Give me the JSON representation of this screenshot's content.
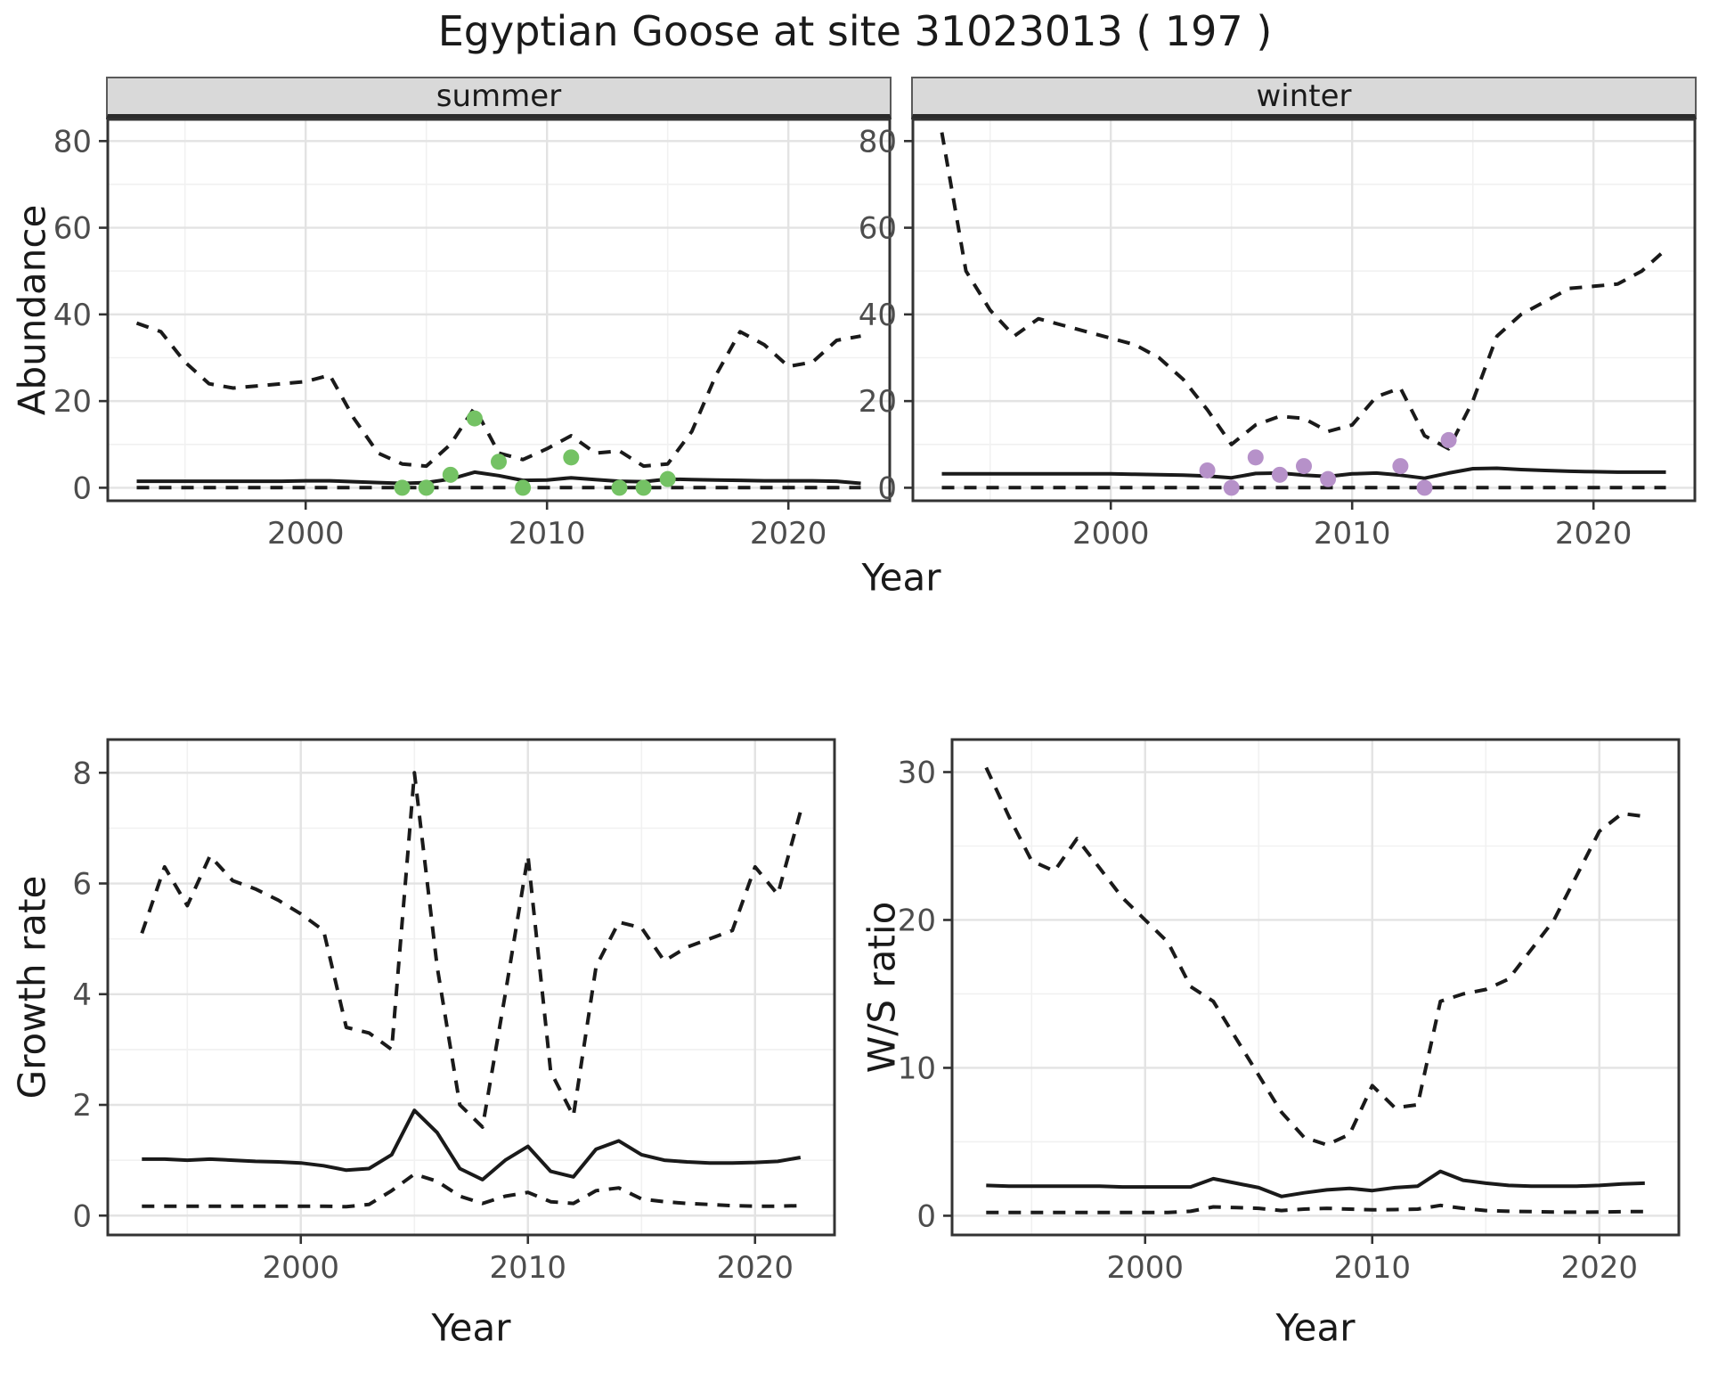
{
  "title": "Egyptian Goose at site 31023013 ( 197 )",
  "colors": {
    "series_line": "#1a1a1a",
    "summer_point": "#74c264",
    "winter_point": "#b691c9",
    "strip_bg": "#d9d9d9",
    "grid_major": "#e3e3e3",
    "grid_minor": "#f1f1f1",
    "panel_border": "#333333",
    "tick_label": "#4d4d4d",
    "title_text": "#1a1a1a"
  },
  "chart_data": [
    {
      "type": "line",
      "facet": "summer",
      "xlabel": "Year",
      "ylabel": "Abundance",
      "xlim": [
        1991.8,
        2024.2
      ],
      "ylim": [
        -3,
        85
      ],
      "x_ticks": [
        2000,
        2010,
        2020
      ],
      "x_minor": [
        1995,
        2005,
        2015
      ],
      "y_ticks": [
        0,
        20,
        40,
        60,
        80
      ],
      "y_minor": [
        10,
        30,
        50,
        70
      ],
      "x": [
        1993,
        1994,
        1995,
        1996,
        1997,
        1998,
        1999,
        2000,
        2001,
        2002,
        2003,
        2004,
        2005,
        2006,
        2007,
        2008,
        2009,
        2010,
        2011,
        2012,
        2013,
        2014,
        2015,
        2016,
        2017,
        2018,
        2019,
        2020,
        2021,
        2022,
        2023
      ],
      "series": [
        {
          "name": "upper_ci",
          "style": "dashed",
          "values": [
            38,
            36,
            29,
            24,
            23,
            23.5,
            24,
            24.5,
            26,
            16,
            8,
            5.5,
            5,
            10,
            18.5,
            8,
            6.5,
            9,
            12,
            8,
            8.5,
            5,
            5.5,
            13,
            26,
            36,
            33,
            28,
            29,
            34,
            35
          ]
        },
        {
          "name": "mean",
          "style": "solid",
          "values": [
            1.5,
            1.5,
            1.5,
            1.5,
            1.5,
            1.5,
            1.5,
            1.6,
            1.6,
            1.4,
            1.2,
            1.0,
            1.2,
            2.0,
            3.6,
            2.8,
            1.7,
            1.8,
            2.3,
            1.9,
            1.5,
            1.4,
            2.0,
            1.9,
            1.8,
            1.7,
            1.6,
            1.6,
            1.6,
            1.5,
            1.0
          ]
        },
        {
          "name": "lower_ci",
          "style": "dashed",
          "values": [
            0.05,
            0.05,
            0.05,
            0.05,
            0.05,
            0.05,
            0.05,
            0.05,
            0.05,
            0.05,
            0.05,
            0.05,
            0.05,
            0.05,
            0.05,
            0.05,
            0.05,
            0.05,
            0.05,
            0.05,
            0.05,
            0.05,
            0.05,
            0.05,
            0.05,
            0.05,
            0.05,
            0.05,
            0.05,
            0.05,
            0.05
          ]
        }
      ],
      "points": {
        "name": "observed-counts",
        "color_key": "summer_point",
        "x": [
          2004,
          2005,
          2006,
          2007,
          2008,
          2009,
          2011,
          2013,
          2014,
          2015
        ],
        "y": [
          0,
          0,
          3,
          16,
          6,
          0,
          7,
          0,
          0,
          2
        ]
      }
    },
    {
      "type": "line",
      "facet": "winter",
      "xlabel": "Year",
      "ylabel": "Abundance",
      "xlim": [
        1991.8,
        2024.2
      ],
      "ylim": [
        -3,
        85
      ],
      "x_ticks": [
        2000,
        2010,
        2020
      ],
      "x_minor": [
        1995,
        2005,
        2015
      ],
      "y_ticks": [
        0,
        20,
        40,
        60,
        80
      ],
      "y_minor": [
        10,
        30,
        50,
        70
      ],
      "x": [
        1993,
        1994,
        1995,
        1996,
        1997,
        1998,
        1999,
        2000,
        2001,
        2002,
        2003,
        2004,
        2005,
        2006,
        2007,
        2008,
        2009,
        2010,
        2011,
        2012,
        2013,
        2014,
        2015,
        2016,
        2017,
        2018,
        2019,
        2020,
        2021,
        2022,
        2023
      ],
      "series": [
        {
          "name": "upper_ci",
          "style": "dashed",
          "values": [
            82,
            50,
            41,
            35,
            39,
            37.5,
            36,
            34.5,
            33,
            30,
            25,
            18,
            10,
            14.5,
            16.5,
            16,
            13,
            14.5,
            21,
            23,
            12,
            9,
            20,
            35,
            40,
            43,
            46,
            46.5,
            47,
            50,
            55
          ]
        },
        {
          "name": "mean",
          "style": "solid",
          "values": [
            3.2,
            3.2,
            3.2,
            3.2,
            3.2,
            3.2,
            3.2,
            3.2,
            3.1,
            3.0,
            2.9,
            2.7,
            2.3,
            3.3,
            3.4,
            2.9,
            2.6,
            3.2,
            3.4,
            2.9,
            2.2,
            3.4,
            4.4,
            4.5,
            4.2,
            4.0,
            3.8,
            3.7,
            3.6,
            3.6,
            3.6
          ]
        },
        {
          "name": "lower_ci",
          "style": "dashed",
          "values": [
            0.05,
            0.05,
            0.05,
            0.05,
            0.05,
            0.05,
            0.05,
            0.05,
            0.05,
            0.05,
            0.05,
            0.05,
            0.05,
            0.05,
            0.05,
            0.05,
            0.05,
            0.05,
            0.05,
            0.05,
            0.05,
            0.05,
            0.05,
            0.05,
            0.05,
            0.05,
            0.05,
            0.05,
            0.05,
            0.05,
            0.05
          ]
        }
      ],
      "points": {
        "name": "observed-counts",
        "color_key": "winter_point",
        "x": [
          2004,
          2005,
          2006,
          2007,
          2008,
          2009,
          2012,
          2013,
          2014
        ],
        "y": [
          4,
          0,
          7,
          3,
          5,
          2,
          5,
          0,
          11
        ]
      }
    },
    {
      "type": "line",
      "facet": null,
      "xlabel": "Year",
      "ylabel": "Growth rate",
      "xlim": [
        1991.5,
        2023.5
      ],
      "ylim": [
        -0.35,
        8.6
      ],
      "x_ticks": [
        2000,
        2010,
        2020
      ],
      "x_minor": [
        1995,
        2005,
        2015
      ],
      "y_ticks": [
        0,
        2,
        4,
        6,
        8
      ],
      "y_minor": [
        1,
        3,
        5,
        7
      ],
      "x": [
        1993,
        1994,
        1995,
        1996,
        1997,
        1998,
        1999,
        2000,
        2001,
        2002,
        2003,
        2004,
        2005,
        2006,
        2007,
        2008,
        2009,
        2010,
        2011,
        2012,
        2013,
        2014,
        2015,
        2016,
        2017,
        2018,
        2019,
        2020,
        2021,
        2022
      ],
      "series": [
        {
          "name": "upper_ci",
          "style": "dashed",
          "values": [
            5.1,
            6.3,
            5.6,
            6.5,
            6.05,
            5.9,
            5.7,
            5.45,
            5.15,
            3.4,
            3.3,
            3.0,
            8.0,
            4.5,
            2.0,
            1.6,
            4.0,
            6.5,
            2.6,
            1.8,
            4.5,
            5.3,
            5.2,
            4.6,
            4.85,
            5.0,
            5.15,
            6.3,
            5.8,
            7.3
          ]
        },
        {
          "name": "mean",
          "style": "solid",
          "values": [
            1.02,
            1.02,
            1.0,
            1.02,
            1.0,
            0.98,
            0.97,
            0.95,
            0.9,
            0.82,
            0.85,
            1.1,
            1.9,
            1.5,
            0.85,
            0.65,
            1.0,
            1.25,
            0.8,
            0.7,
            1.2,
            1.35,
            1.1,
            1.0,
            0.97,
            0.95,
            0.95,
            0.96,
            0.98,
            1.05
          ]
        },
        {
          "name": "lower_ci",
          "style": "dashed",
          "values": [
            0.17,
            0.17,
            0.17,
            0.17,
            0.17,
            0.17,
            0.17,
            0.17,
            0.17,
            0.16,
            0.2,
            0.45,
            0.75,
            0.62,
            0.35,
            0.22,
            0.35,
            0.42,
            0.25,
            0.22,
            0.45,
            0.5,
            0.3,
            0.25,
            0.22,
            0.2,
            0.18,
            0.17,
            0.17,
            0.18
          ]
        }
      ],
      "points": null
    },
    {
      "type": "line",
      "facet": null,
      "xlabel": "Year",
      "ylabel": "W/S ratio",
      "xlim": [
        1991.5,
        2023.5
      ],
      "ylim": [
        -1.3,
        32.2
      ],
      "x_ticks": [
        2000,
        2010,
        2020
      ],
      "x_minor": [
        1995,
        2005,
        2015
      ],
      "y_ticks": [
        0,
        10,
        20,
        30
      ],
      "y_minor": [
        5,
        15,
        25
      ],
      "x": [
        1993,
        1994,
        1995,
        1996,
        1997,
        1998,
        1999,
        2000,
        2001,
        2002,
        2003,
        2004,
        2005,
        2006,
        2007,
        2008,
        2009,
        2010,
        2011,
        2012,
        2013,
        2014,
        2015,
        2016,
        2017,
        2018,
        2019,
        2020,
        2021,
        2022
      ],
      "series": [
        {
          "name": "upper_ci",
          "style": "dashed",
          "values": [
            30.3,
            27,
            24,
            23.3,
            25.5,
            23.5,
            21.5,
            20,
            18.5,
            15.5,
            14.5,
            12,
            9.5,
            7,
            5.3,
            4.8,
            5.5,
            8.8,
            7.3,
            7.5,
            14.5,
            15,
            15.3,
            16,
            18,
            20,
            23,
            26,
            27.2,
            27
          ]
        },
        {
          "name": "mean",
          "style": "solid",
          "values": [
            2.05,
            2.0,
            2.0,
            2.0,
            2.0,
            2.0,
            1.95,
            1.95,
            1.95,
            1.95,
            2.5,
            2.2,
            1.9,
            1.3,
            1.55,
            1.75,
            1.85,
            1.7,
            1.9,
            2.0,
            3.0,
            2.4,
            2.2,
            2.05,
            2.0,
            2.0,
            2.0,
            2.05,
            2.15,
            2.2
          ]
        },
        {
          "name": "lower_ci",
          "style": "dashed",
          "values": [
            0.22,
            0.22,
            0.22,
            0.22,
            0.22,
            0.22,
            0.22,
            0.22,
            0.22,
            0.3,
            0.6,
            0.55,
            0.5,
            0.35,
            0.45,
            0.5,
            0.45,
            0.4,
            0.42,
            0.45,
            0.7,
            0.5,
            0.35,
            0.3,
            0.28,
            0.25,
            0.24,
            0.25,
            0.28,
            0.28
          ]
        }
      ],
      "points": null
    }
  ]
}
